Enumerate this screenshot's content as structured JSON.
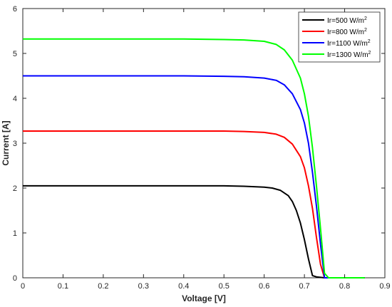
{
  "chart_data": {
    "type": "line",
    "xlabel": "Voltage [V]",
    "ylabel": "Current [A]",
    "xlim": [
      0,
      0.9
    ],
    "ylim": [
      0,
      6
    ],
    "xticks": [
      0,
      0.1,
      0.2,
      0.3,
      0.4,
      0.5,
      0.6,
      0.7,
      0.8,
      0.9
    ],
    "xtick_labels": [
      "0",
      "0.1",
      "0.2",
      "0.3",
      "0.4",
      "0.5",
      "0.6",
      "0.7",
      "0.8",
      "0.9"
    ],
    "yticks": [
      0,
      1,
      2,
      3,
      4,
      5,
      6
    ],
    "ytick_labels": [
      "0",
      "1",
      "2",
      "3",
      "4",
      "5",
      "6"
    ],
    "grid": false,
    "legend_position": "top-right",
    "series": [
      {
        "name": "Ir=500 W/m",
        "name_sup": "2",
        "color": "#000000",
        "x": [
          0,
          0.1,
          0.2,
          0.3,
          0.4,
          0.5,
          0.55,
          0.6,
          0.62,
          0.64,
          0.66,
          0.67,
          0.68,
          0.69,
          0.7,
          0.71,
          0.72,
          0.73,
          0.75,
          0.85
        ],
        "y": [
          2.05,
          2.05,
          2.05,
          2.05,
          2.05,
          2.05,
          2.04,
          2.02,
          2.0,
          1.95,
          1.83,
          1.7,
          1.5,
          1.22,
          0.85,
          0.42,
          0.05,
          0.02,
          0.0,
          0.0
        ]
      },
      {
        "name": "Ir=800 W/m",
        "name_sup": "2",
        "color": "#ff0000",
        "x": [
          0,
          0.1,
          0.2,
          0.3,
          0.4,
          0.5,
          0.55,
          0.6,
          0.63,
          0.65,
          0.67,
          0.69,
          0.7,
          0.71,
          0.72,
          0.73,
          0.74,
          0.75,
          0.85
        ],
        "y": [
          3.27,
          3.27,
          3.27,
          3.27,
          3.27,
          3.27,
          3.26,
          3.24,
          3.2,
          3.13,
          2.98,
          2.7,
          2.45,
          2.05,
          1.55,
          0.9,
          0.3,
          0.0,
          0.0
        ]
      },
      {
        "name": "Ir=1100 W/m",
        "name_sup": "2",
        "color": "#0000ff",
        "x": [
          0,
          0.1,
          0.2,
          0.3,
          0.4,
          0.5,
          0.55,
          0.6,
          0.63,
          0.65,
          0.67,
          0.69,
          0.7,
          0.71,
          0.72,
          0.73,
          0.74,
          0.75,
          0.85
        ],
        "y": [
          4.5,
          4.5,
          4.5,
          4.5,
          4.5,
          4.49,
          4.48,
          4.45,
          4.4,
          4.3,
          4.1,
          3.75,
          3.45,
          3.0,
          2.35,
          1.6,
          0.75,
          0.0,
          0.0
        ]
      },
      {
        "name": "Ir=1300 W/m",
        "name_sup": "2",
        "color": "#00ff00",
        "x": [
          0,
          0.1,
          0.2,
          0.3,
          0.4,
          0.5,
          0.55,
          0.6,
          0.63,
          0.65,
          0.67,
          0.69,
          0.7,
          0.71,
          0.72,
          0.73,
          0.74,
          0.75,
          0.76,
          0.85
        ],
        "y": [
          5.32,
          5.32,
          5.32,
          5.32,
          5.32,
          5.31,
          5.3,
          5.27,
          5.2,
          5.08,
          4.85,
          4.45,
          4.1,
          3.6,
          2.9,
          2.05,
          1.1,
          0.1,
          0.0,
          0.0
        ]
      }
    ]
  }
}
